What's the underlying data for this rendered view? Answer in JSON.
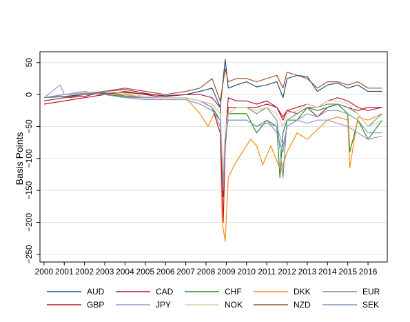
{
  "chart_data": {
    "type": "line",
    "title": "",
    "xlabel": "",
    "ylabel": "Basis Points",
    "xlim": [
      1999.8,
      2016.95
    ],
    "ylim": [
      -262,
      67
    ],
    "x_ticks": [
      2000,
      2001,
      2002,
      2003,
      2004,
      2005,
      2006,
      2007,
      2008,
      2009,
      2010,
      2011,
      2012,
      2013,
      2014,
      2015,
      2016
    ],
    "x_tick_labels": [
      "2000",
      "2001",
      "2002",
      "2003",
      "2004",
      "2005",
      "2006",
      "2007",
      "2008",
      "2009",
      "2010",
      "2011",
      "2012",
      "2013",
      "2014",
      "2015",
      "2016"
    ],
    "y_ticks": [
      50,
      0,
      -50,
      -100,
      -150,
      -200,
      -250
    ],
    "y_tick_labels": [
      "50",
      "0",
      "−50",
      "−100",
      "−150",
      "−200",
      "−250"
    ],
    "grid": true,
    "legend_position": "bottom",
    "legend_columns": 5,
    "series": [
      {
        "name": "AUD",
        "color": "#1f4e79",
        "x": [
          2000,
          2001,
          2002,
          2003,
          2004,
          2005,
          2006,
          2007,
          2007.7,
          2008.3,
          2008.7,
          2008.85,
          2008.95,
          2009.1,
          2009.5,
          2010,
          2010.5,
          2011,
          2011.5,
          2011.8,
          2012,
          2012.5,
          2013,
          2013.5,
          2014,
          2014.5,
          2015,
          2015.5,
          2016,
          2016.7
        ],
        "y": [
          -5,
          -3,
          0,
          2,
          3,
          1,
          -2,
          0,
          5,
          10,
          -20,
          25,
          55,
          10,
          15,
          20,
          12,
          15,
          20,
          -5,
          25,
          30,
          28,
          5,
          15,
          18,
          10,
          15,
          5,
          5
        ]
      },
      {
        "name": "CAD",
        "color": "#a6193a",
        "x": [
          2000,
          2001,
          2002,
          2003,
          2004,
          2005,
          2006,
          2007,
          2007.7,
          2008.3,
          2008.7,
          2008.85,
          2008.95,
          2009.1,
          2009.5,
          2010,
          2010.5,
          2011,
          2011.5,
          2011.8,
          2012,
          2012.5,
          2013,
          2013.5,
          2014,
          2014.5,
          2015,
          2015.5,
          2016,
          2016.7
        ],
        "y": [
          -10,
          -5,
          -3,
          5,
          8,
          2,
          -3,
          0,
          0,
          -5,
          -20,
          -160,
          -70,
          -5,
          -10,
          -10,
          -15,
          -10,
          -20,
          -35,
          -25,
          -30,
          -20,
          -35,
          -20,
          -15,
          -20,
          -25,
          -20,
          -20
        ]
      },
      {
        "name": "CHF",
        "color": "#1e8c1e",
        "x": [
          2000,
          2001,
          2002,
          2003,
          2004,
          2005,
          2006,
          2007,
          2007.7,
          2008.3,
          2008.7,
          2008.85,
          2008.95,
          2009.1,
          2009.5,
          2010,
          2010.5,
          2011,
          2011.5,
          2011.65,
          2011.8,
          2012,
          2012.5,
          2013,
          2013.5,
          2014,
          2014.5,
          2015,
          2015.1,
          2015.5,
          2016,
          2016.7
        ],
        "y": [
          -5,
          0,
          2,
          0,
          -3,
          -5,
          -5,
          -5,
          -10,
          -20,
          -40,
          -150,
          -80,
          -30,
          -30,
          -30,
          -60,
          -40,
          -50,
          -130,
          -60,
          -40,
          -40,
          -20,
          -25,
          -20,
          -15,
          -30,
          -90,
          -40,
          -70,
          -40
        ]
      },
      {
        "name": "DKK",
        "color": "#f28c0c",
        "x": [
          2000,
          2001,
          2002,
          2003,
          2004,
          2005,
          2006,
          2007,
          2007.7,
          2008.1,
          2008.4,
          2008.7,
          2008.8,
          2008.95,
          2009.1,
          2009.4,
          2009.8,
          2010.2,
          2010.5,
          2010.8,
          2011.2,
          2011.7,
          2012,
          2012.5,
          2013,
          2013.5,
          2014,
          2014.5,
          2015,
          2015.1,
          2015.5,
          2016,
          2016.7
        ],
        "y": [
          -5,
          0,
          2,
          3,
          0,
          -5,
          -5,
          -5,
          -30,
          -50,
          -30,
          -60,
          -200,
          -230,
          -130,
          -110,
          -90,
          -70,
          -80,
          -110,
          -80,
          -120,
          -90,
          -60,
          -70,
          -55,
          -40,
          -35,
          -40,
          -115,
          -35,
          -40,
          -30
        ]
      },
      {
        "name": "EUR",
        "color": "#7a8c8a",
        "x": [
          2000,
          2001,
          2002,
          2003,
          2004,
          2005,
          2006,
          2007,
          2007.7,
          2008.3,
          2008.7,
          2008.85,
          2008.95,
          2009.1,
          2009.5,
          2010,
          2010.5,
          2011,
          2011.5,
          2011.8,
          2012,
          2012.5,
          2013,
          2013.5,
          2014,
          2014.5,
          2015,
          2015.5,
          2016,
          2016.7
        ],
        "y": [
          -5,
          0,
          2,
          3,
          -2,
          -5,
          -5,
          -5,
          -10,
          -15,
          -30,
          -140,
          -60,
          -30,
          -20,
          -20,
          -30,
          -20,
          -40,
          -130,
          -40,
          -30,
          -20,
          -20,
          -15,
          -15,
          -20,
          -30,
          -50,
          -30
        ]
      },
      {
        "name": "GBP",
        "color": "#c8102e",
        "x": [
          2000,
          2001,
          2002,
          2003,
          2004,
          2005,
          2006,
          2007,
          2007.7,
          2008.3,
          2008.7,
          2008.85,
          2008.95,
          2009.1,
          2009.5,
          2010,
          2010.5,
          2011,
          2011.5,
          2011.8,
          2012,
          2012.5,
          2013,
          2013.5,
          2014,
          2014.5,
          2015,
          2015.5,
          2016,
          2016.7
        ],
        "y": [
          -15,
          -10,
          -5,
          0,
          5,
          0,
          -5,
          -5,
          -10,
          -20,
          -60,
          -200,
          -80,
          -20,
          -20,
          -20,
          -20,
          -15,
          -20,
          -40,
          -25,
          -20,
          -15,
          -20,
          -10,
          -5,
          -10,
          -20,
          -25,
          -20
        ]
      },
      {
        "name": "JPY",
        "color": "#9e8fd8",
        "x": [
          2000,
          2000.8,
          2001,
          2002,
          2003,
          2004,
          2005,
          2006,
          2007,
          2007.7,
          2008.3,
          2008.7,
          2008.85,
          2008.95,
          2009.1,
          2009.5,
          2010,
          2010.5,
          2011,
          2011.5,
          2011.8,
          2012,
          2012.5,
          2013,
          2013.5,
          2014,
          2014.5,
          2015,
          2015.5,
          2016,
          2016.7
        ],
        "y": [
          -5,
          15,
          0,
          5,
          0,
          -5,
          -5,
          -5,
          -5,
          -10,
          -20,
          -50,
          -130,
          -60,
          -40,
          -40,
          -40,
          -50,
          -45,
          -50,
          -80,
          -50,
          -40,
          -45,
          -40,
          -40,
          -45,
          -50,
          -60,
          -70,
          -65
        ]
      },
      {
        "name": "NOK",
        "color": "#d8ceaa",
        "x": [
          2000,
          2001,
          2002,
          2003,
          2004,
          2005,
          2006,
          2007,
          2007.7,
          2008.3,
          2008.7,
          2008.85,
          2008.95,
          2009.1,
          2009.5,
          2010,
          2010.5,
          2011,
          2011.5,
          2011.8,
          2012,
          2012.5,
          2013,
          2013.5,
          2014,
          2014.5,
          2015,
          2015.5,
          2016,
          2016.7
        ],
        "y": [
          -5,
          0,
          3,
          5,
          2,
          -3,
          -5,
          -5,
          -10,
          -15,
          -30,
          -120,
          -60,
          -30,
          -20,
          -20,
          -25,
          -20,
          -30,
          -50,
          -30,
          -25,
          -15,
          -20,
          -10,
          -10,
          -15,
          -30,
          -50,
          -40
        ]
      },
      {
        "name": "NZD",
        "color": "#a0522d",
        "x": [
          2000,
          2001,
          2002,
          2003,
          2004,
          2005,
          2006,
          2007,
          2007.7,
          2008.3,
          2008.7,
          2008.85,
          2008.95,
          2009.1,
          2009.5,
          2010,
          2010.5,
          2011,
          2011.5,
          2011.8,
          2012,
          2012.5,
          2013,
          2013.5,
          2014,
          2014.5,
          2015,
          2015.5,
          2016,
          2016.7
        ],
        "y": [
          -10,
          -5,
          0,
          5,
          10,
          5,
          0,
          5,
          10,
          25,
          -10,
          20,
          40,
          20,
          25,
          25,
          20,
          25,
          30,
          10,
          35,
          30,
          25,
          10,
          20,
          20,
          15,
          20,
          10,
          10
        ]
      },
      {
        "name": "SEK",
        "color": "#8097b8",
        "x": [
          2000,
          2001,
          2002,
          2003,
          2004,
          2005,
          2006,
          2007,
          2007.7,
          2008.3,
          2008.7,
          2008.85,
          2008.95,
          2009.1,
          2009.5,
          2010,
          2010.5,
          2011,
          2011.5,
          2011.8,
          2012,
          2012.5,
          2013,
          2013.5,
          2014,
          2014.5,
          2015,
          2015.5,
          2016,
          2016.7
        ],
        "y": [
          -5,
          0,
          2,
          0,
          -5,
          -8,
          -8,
          -8,
          -15,
          -25,
          -40,
          -150,
          -70,
          -40,
          -40,
          -40,
          -50,
          -40,
          -60,
          -90,
          -50,
          -40,
          -30,
          -35,
          -25,
          -25,
          -30,
          -40,
          -60,
          -60
        ]
      }
    ]
  }
}
